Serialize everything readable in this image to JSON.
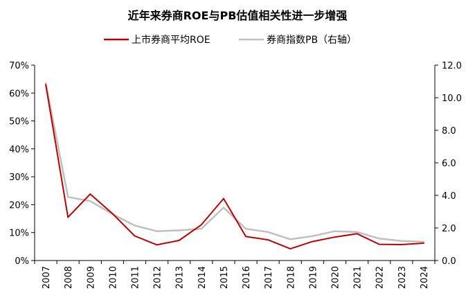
{
  "chart_data": {
    "type": "line",
    "title": "近年来券商ROE与PB估值相关性进一步增强",
    "categories": [
      "2007",
      "2008",
      "2009",
      "2010",
      "2011",
      "2012",
      "2013",
      "2014",
      "2015",
      "2016",
      "2017",
      "2018",
      "2019",
      "2020",
      "2021",
      "2022",
      "2023",
      "2024"
    ],
    "series": [
      {
        "name": "上市券商平均ROE",
        "axis": "left",
        "color": "#c00000",
        "values": [
          63,
          15.5,
          23.8,
          16.8,
          8.8,
          5.6,
          7.2,
          12.8,
          22.2,
          8.6,
          7.4,
          4.2,
          6.8,
          8.4,
          9.6,
          5.8,
          5.7,
          6.2
        ]
      },
      {
        "name": "券商指数PB（右轴）",
        "axis": "right",
        "color": "#bfbfbf",
        "values": [
          10.9,
          3.9,
          3.65,
          2.85,
          2.15,
          1.8,
          1.85,
          1.95,
          3.25,
          1.95,
          1.75,
          1.3,
          1.5,
          1.8,
          1.75,
          1.35,
          1.2,
          1.15
        ]
      }
    ],
    "y_left": {
      "lim": [
        0,
        70
      ],
      "ticks": [
        0,
        10,
        20,
        30,
        40,
        50,
        60,
        70
      ],
      "tick_labels": [
        "0%",
        "10%",
        "20%",
        "30%",
        "40%",
        "50%",
        "60%",
        "70%"
      ]
    },
    "y_right": {
      "lim": [
        0,
        12
      ],
      "ticks": [
        0,
        2,
        4,
        6,
        8,
        10,
        12
      ],
      "tick_labels": [
        "0.0",
        "2.0",
        "4.0",
        "6.0",
        "8.0",
        "10.0",
        "12.0"
      ]
    },
    "legend_position": "top-center",
    "grid": false
  }
}
